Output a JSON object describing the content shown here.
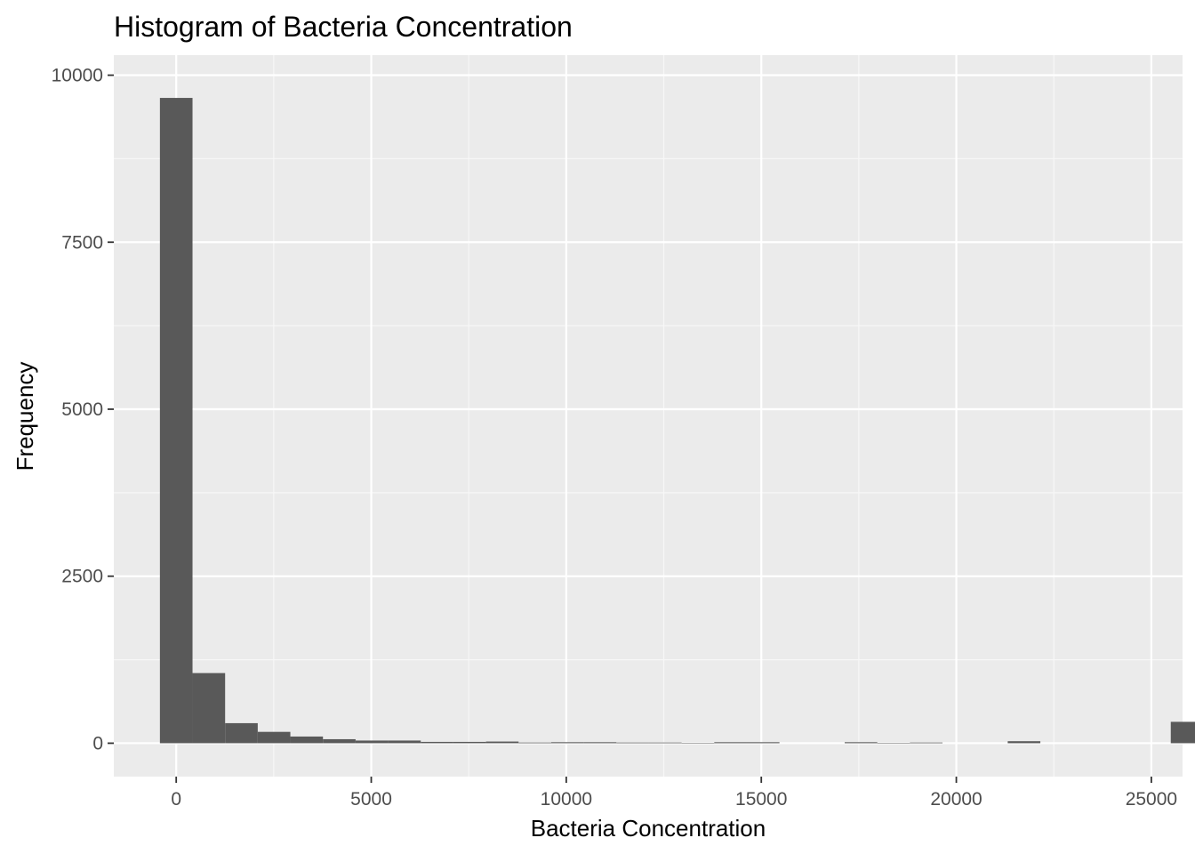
{
  "chart_data": {
    "type": "bar",
    "title": "Histogram of Bacteria Concentration",
    "xlabel": "Bacteria Concentration",
    "ylabel": "Frequency",
    "xlim": [
      -1600,
      25800
    ],
    "ylim": [
      -500,
      10300
    ],
    "x_ticks": [
      0,
      5000,
      10000,
      15000,
      20000,
      25000
    ],
    "x_tick_labels": [
      "0",
      "5000",
      "10000",
      "15000",
      "20000",
      "25000"
    ],
    "x_minor_ticks": [
      2500,
      7500,
      12500,
      17500,
      22500
    ],
    "y_ticks": [
      0,
      2500,
      5000,
      7500,
      10000
    ],
    "y_tick_labels": [
      "0",
      "2500",
      "5000",
      "7500",
      "10000"
    ],
    "y_minor_ticks": [
      1250,
      3750,
      6250,
      8750
    ],
    "bin_width": 836,
    "bin_start": -418,
    "counts": [
      9660,
      1050,
      300,
      170,
      100,
      60,
      40,
      40,
      20,
      20,
      25,
      10,
      15,
      15,
      10,
      10,
      5,
      15,
      15,
      0,
      0,
      15,
      5,
      10,
      0,
      0,
      30,
      0,
      0,
      0,
      0,
      320
    ],
    "grid": true,
    "legend": "none",
    "colors": {
      "bar": "#595959",
      "panel": "#ebebeb",
      "grid_major": "#ffffff",
      "grid_minor": "#f7f7f7",
      "tick_label": "#4d4d4d",
      "tick_mark": "#333333",
      "text": "#000000"
    }
  }
}
